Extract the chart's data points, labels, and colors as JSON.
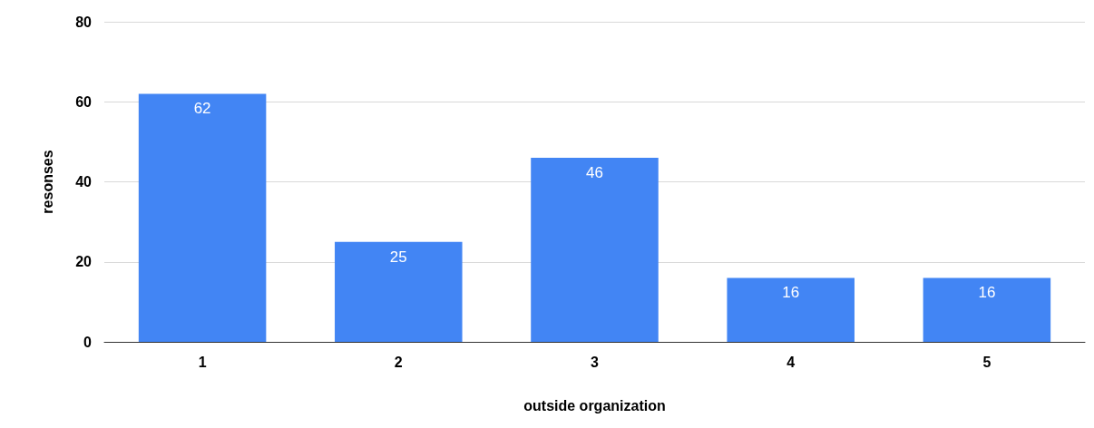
{
  "chart_data": {
    "type": "bar",
    "xlabel": "outside organization",
    "ylabel": "resonses",
    "categories": [
      "1",
      "2",
      "3",
      "4",
      "5"
    ],
    "values": [
      62,
      25,
      46,
      16,
      16
    ],
    "color": "#4285f4",
    "ylim": [
      0,
      80
    ],
    "yticks": [
      0,
      20,
      40,
      60,
      80
    ],
    "grid": "y",
    "data_labels": true
  }
}
